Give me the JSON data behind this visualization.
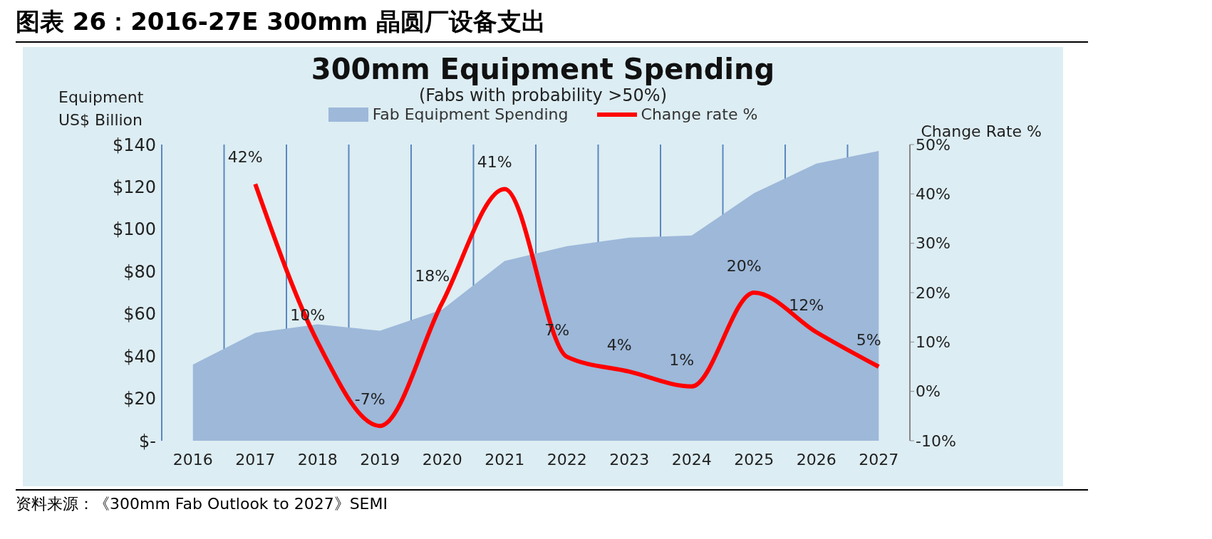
{
  "chart_data": {
    "type": "area",
    "title": "图表 26：2016-27E 300mm 晶圆厂设备支出",
    "subtitle": "300mm Equipment Spending",
    "annotations": [
      "(Fabs with probability >50%)",
      "资料来源：《300mm Fab Outlook to 2027》SEMI"
    ],
    "categories": [
      "2016",
      "2017",
      "2018",
      "2019",
      "2020",
      "2021",
      "2022",
      "2023",
      "2024",
      "2025",
      "2026",
      "2027"
    ],
    "series": [
      {
        "name": "Fab Equipment Spending",
        "color": "#9db8d9",
        "values": [
          36,
          51,
          55,
          52,
          62,
          85,
          92,
          96,
          97,
          117,
          131,
          137
        ]
      },
      {
        "name": "Change rate %",
        "type": "line",
        "axis": "y2",
        "color": "#ff0000",
        "values": [
          null,
          42,
          10,
          -7,
          18,
          41,
          7,
          4,
          1,
          20,
          12,
          5
        ],
        "value_labels": [
          null,
          "42%",
          "10%",
          "-7%",
          "18%",
          "41%",
          "7%",
          "4%",
          "1%",
          "20%",
          "12%",
          "5%"
        ]
      }
    ],
    "ylabel": "Equipment\nUS$ Billion",
    "y2label": "Change Rate %",
    "ylim": [
      0,
      140
    ],
    "yticks": [
      {
        "value": 0,
        "label": "$-"
      },
      {
        "value": 20,
        "label": "$20"
      },
      {
        "value": 40,
        "label": "$40"
      },
      {
        "value": 60,
        "label": "$60"
      },
      {
        "value": 80,
        "label": "$80"
      },
      {
        "value": 100,
        "label": "$100"
      },
      {
        "value": 120,
        "label": "$120"
      },
      {
        "value": 140,
        "label": "$140"
      }
    ],
    "y2lim": [
      -10,
      50
    ],
    "y2ticks": [
      {
        "value": -10,
        "label": "-10%"
      },
      {
        "value": 0,
        "label": "0%"
      },
      {
        "value": 10,
        "label": "10%"
      },
      {
        "value": 20,
        "label": "20%"
      },
      {
        "value": 30,
        "label": "30%"
      },
      {
        "value": 40,
        "label": "40%"
      },
      {
        "value": 50,
        "label": "50%"
      }
    ],
    "grid": "x",
    "legend": "top",
    "marker": "none",
    "line_style": "solid"
  }
}
